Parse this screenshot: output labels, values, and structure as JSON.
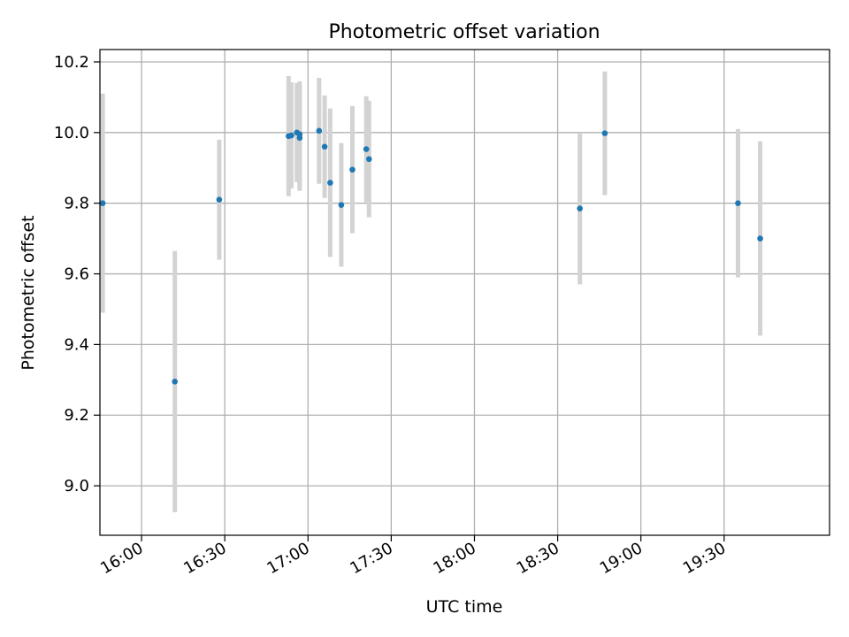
{
  "chart_data": {
    "type": "scatter",
    "title": "Photometric offset variation",
    "xlabel": "UTC time",
    "ylabel": "Photometric offset",
    "x_tick_labels": [
      "16:00",
      "16:30",
      "17:00",
      "17:30",
      "18:00",
      "18:30",
      "19:00",
      "19:30"
    ],
    "y_tick_labels": [
      "9.0",
      "9.2",
      "9.4",
      "9.6",
      "9.8",
      "10.0",
      "10.2"
    ],
    "xlim": [
      "15:45",
      "20:08"
    ],
    "ylim": [
      8.86,
      10.235
    ],
    "grid": true,
    "series": [
      {
        "x": [
          "15:46",
          "16:12",
          "16:28",
          "16:53",
          "16:54",
          "16:56",
          "16:57",
          "16:57",
          "17:04",
          "17:06",
          "17:08",
          "17:12",
          "17:16",
          "17:21",
          "17:22",
          "18:38",
          "18:47",
          "19:35",
          "19:43"
        ],
        "y": [
          9.8,
          9.295,
          9.81,
          9.99,
          9.992,
          10.0,
          9.985,
          9.995,
          10.005,
          9.96,
          9.858,
          9.795,
          9.895,
          9.953,
          9.925,
          9.785,
          9.998,
          9.8,
          9.7
        ],
        "error": [
          0.31,
          0.37,
          0.17,
          0.17,
          0.15,
          0.14,
          0.15,
          0.15,
          0.15,
          0.145,
          0.21,
          0.175,
          0.18,
          0.15,
          0.165,
          0.215,
          0.175,
          0.21,
          0.275
        ]
      }
    ],
    "colors": {
      "points": "#1f77b4",
      "errorbars": "#d3d3d3",
      "grid": "#b0b0b0"
    }
  }
}
